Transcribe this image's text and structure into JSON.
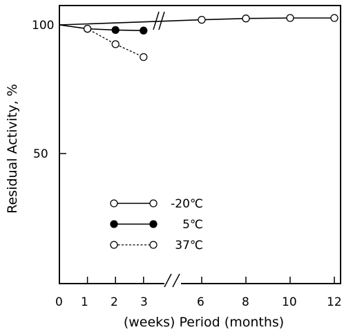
{
  "chart_data": {
    "type": "line",
    "xlabel": "(weeks) Period (months)",
    "ylabel": "Residual Activity, %",
    "ylim": [
      0,
      105
    ],
    "x_segments": [
      {
        "unit": "weeks",
        "ticks": [
          0,
          1,
          2,
          3
        ]
      },
      {
        "unit": "months",
        "ticks": [
          6,
          8,
          10,
          12
        ]
      }
    ],
    "x_tick_labels": [
      "0",
      "1",
      "2",
      "3",
      "6",
      "8",
      "10",
      "12"
    ],
    "y_tick_labels": [
      "50",
      "100"
    ],
    "axis_break": "between 3 weeks and 6 months",
    "grid": false,
    "legend_position": "lower-left",
    "series": [
      {
        "name": "-20℃",
        "marker": "open-circle",
        "line": "solid",
        "points": [
          {
            "x": 0,
            "unit": "weeks",
            "y": 100
          },
          {
            "x": 6,
            "unit": "months",
            "y": 102
          },
          {
            "x": 8,
            "unit": "months",
            "y": 102.5
          },
          {
            "x": 10,
            "unit": "months",
            "y": 102.7
          },
          {
            "x": 12,
            "unit": "months",
            "y": 102.7
          }
        ]
      },
      {
        "name": "5℃",
        "marker": "filled-circle",
        "line": "solid",
        "points": [
          {
            "x": 0,
            "unit": "weeks",
            "y": 100
          },
          {
            "x": 1,
            "unit": "weeks",
            "y": 98.5
          },
          {
            "x": 2,
            "unit": "weeks",
            "y": 98
          },
          {
            "x": 3,
            "unit": "weeks",
            "y": 97.8
          }
        ]
      },
      {
        "name": "37℃",
        "marker": "open-circle",
        "line": "dotted",
        "points": [
          {
            "x": 0,
            "unit": "weeks",
            "y": 100
          },
          {
            "x": 1,
            "unit": "weeks",
            "y": 98.5
          },
          {
            "x": 2,
            "unit": "weeks",
            "y": 92.5
          },
          {
            "x": 3,
            "unit": "weeks",
            "y": 87.5
          }
        ]
      }
    ]
  }
}
